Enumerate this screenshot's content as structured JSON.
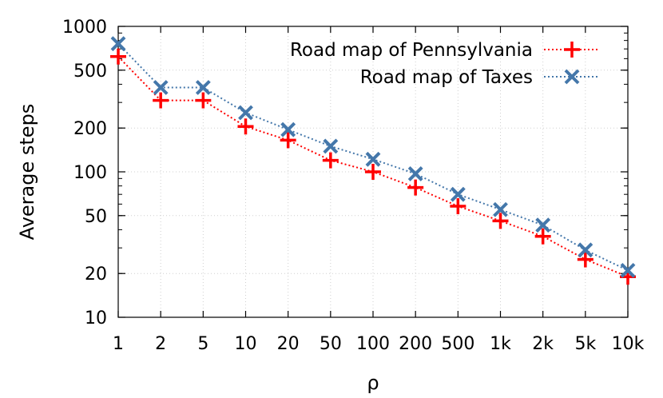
{
  "chart_data": {
    "type": "line",
    "title": "",
    "xlabel": "ρ",
    "ylabel": "Average steps",
    "categories": [
      "1",
      "2",
      "5",
      "10",
      "20",
      "50",
      "100",
      "200",
      "500",
      "1k",
      "2k",
      "5k",
      "10k"
    ],
    "yscale": "log",
    "ylim": [
      10,
      1000
    ],
    "yticks": [
      10,
      20,
      50,
      100,
      200,
      500,
      1000
    ],
    "ytick_labels": [
      "10",
      "20",
      "50",
      "100",
      "200",
      "500",
      "1000"
    ],
    "grid": true,
    "legend_position": "top-right",
    "series": [
      {
        "name": "Road map of Pennsylvania",
        "color": "#ff0000",
        "marker": "plus",
        "values": [
          620,
          310,
          310,
          205,
          165,
          120,
          100,
          78,
          58,
          46,
          36,
          25,
          19
        ]
      },
      {
        "name": "Road map of Taxes",
        "color": "#4477aa",
        "marker": "x",
        "values": [
          760,
          380,
          380,
          255,
          195,
          150,
          122,
          97,
          70,
          55,
          43,
          29,
          21
        ]
      }
    ]
  }
}
